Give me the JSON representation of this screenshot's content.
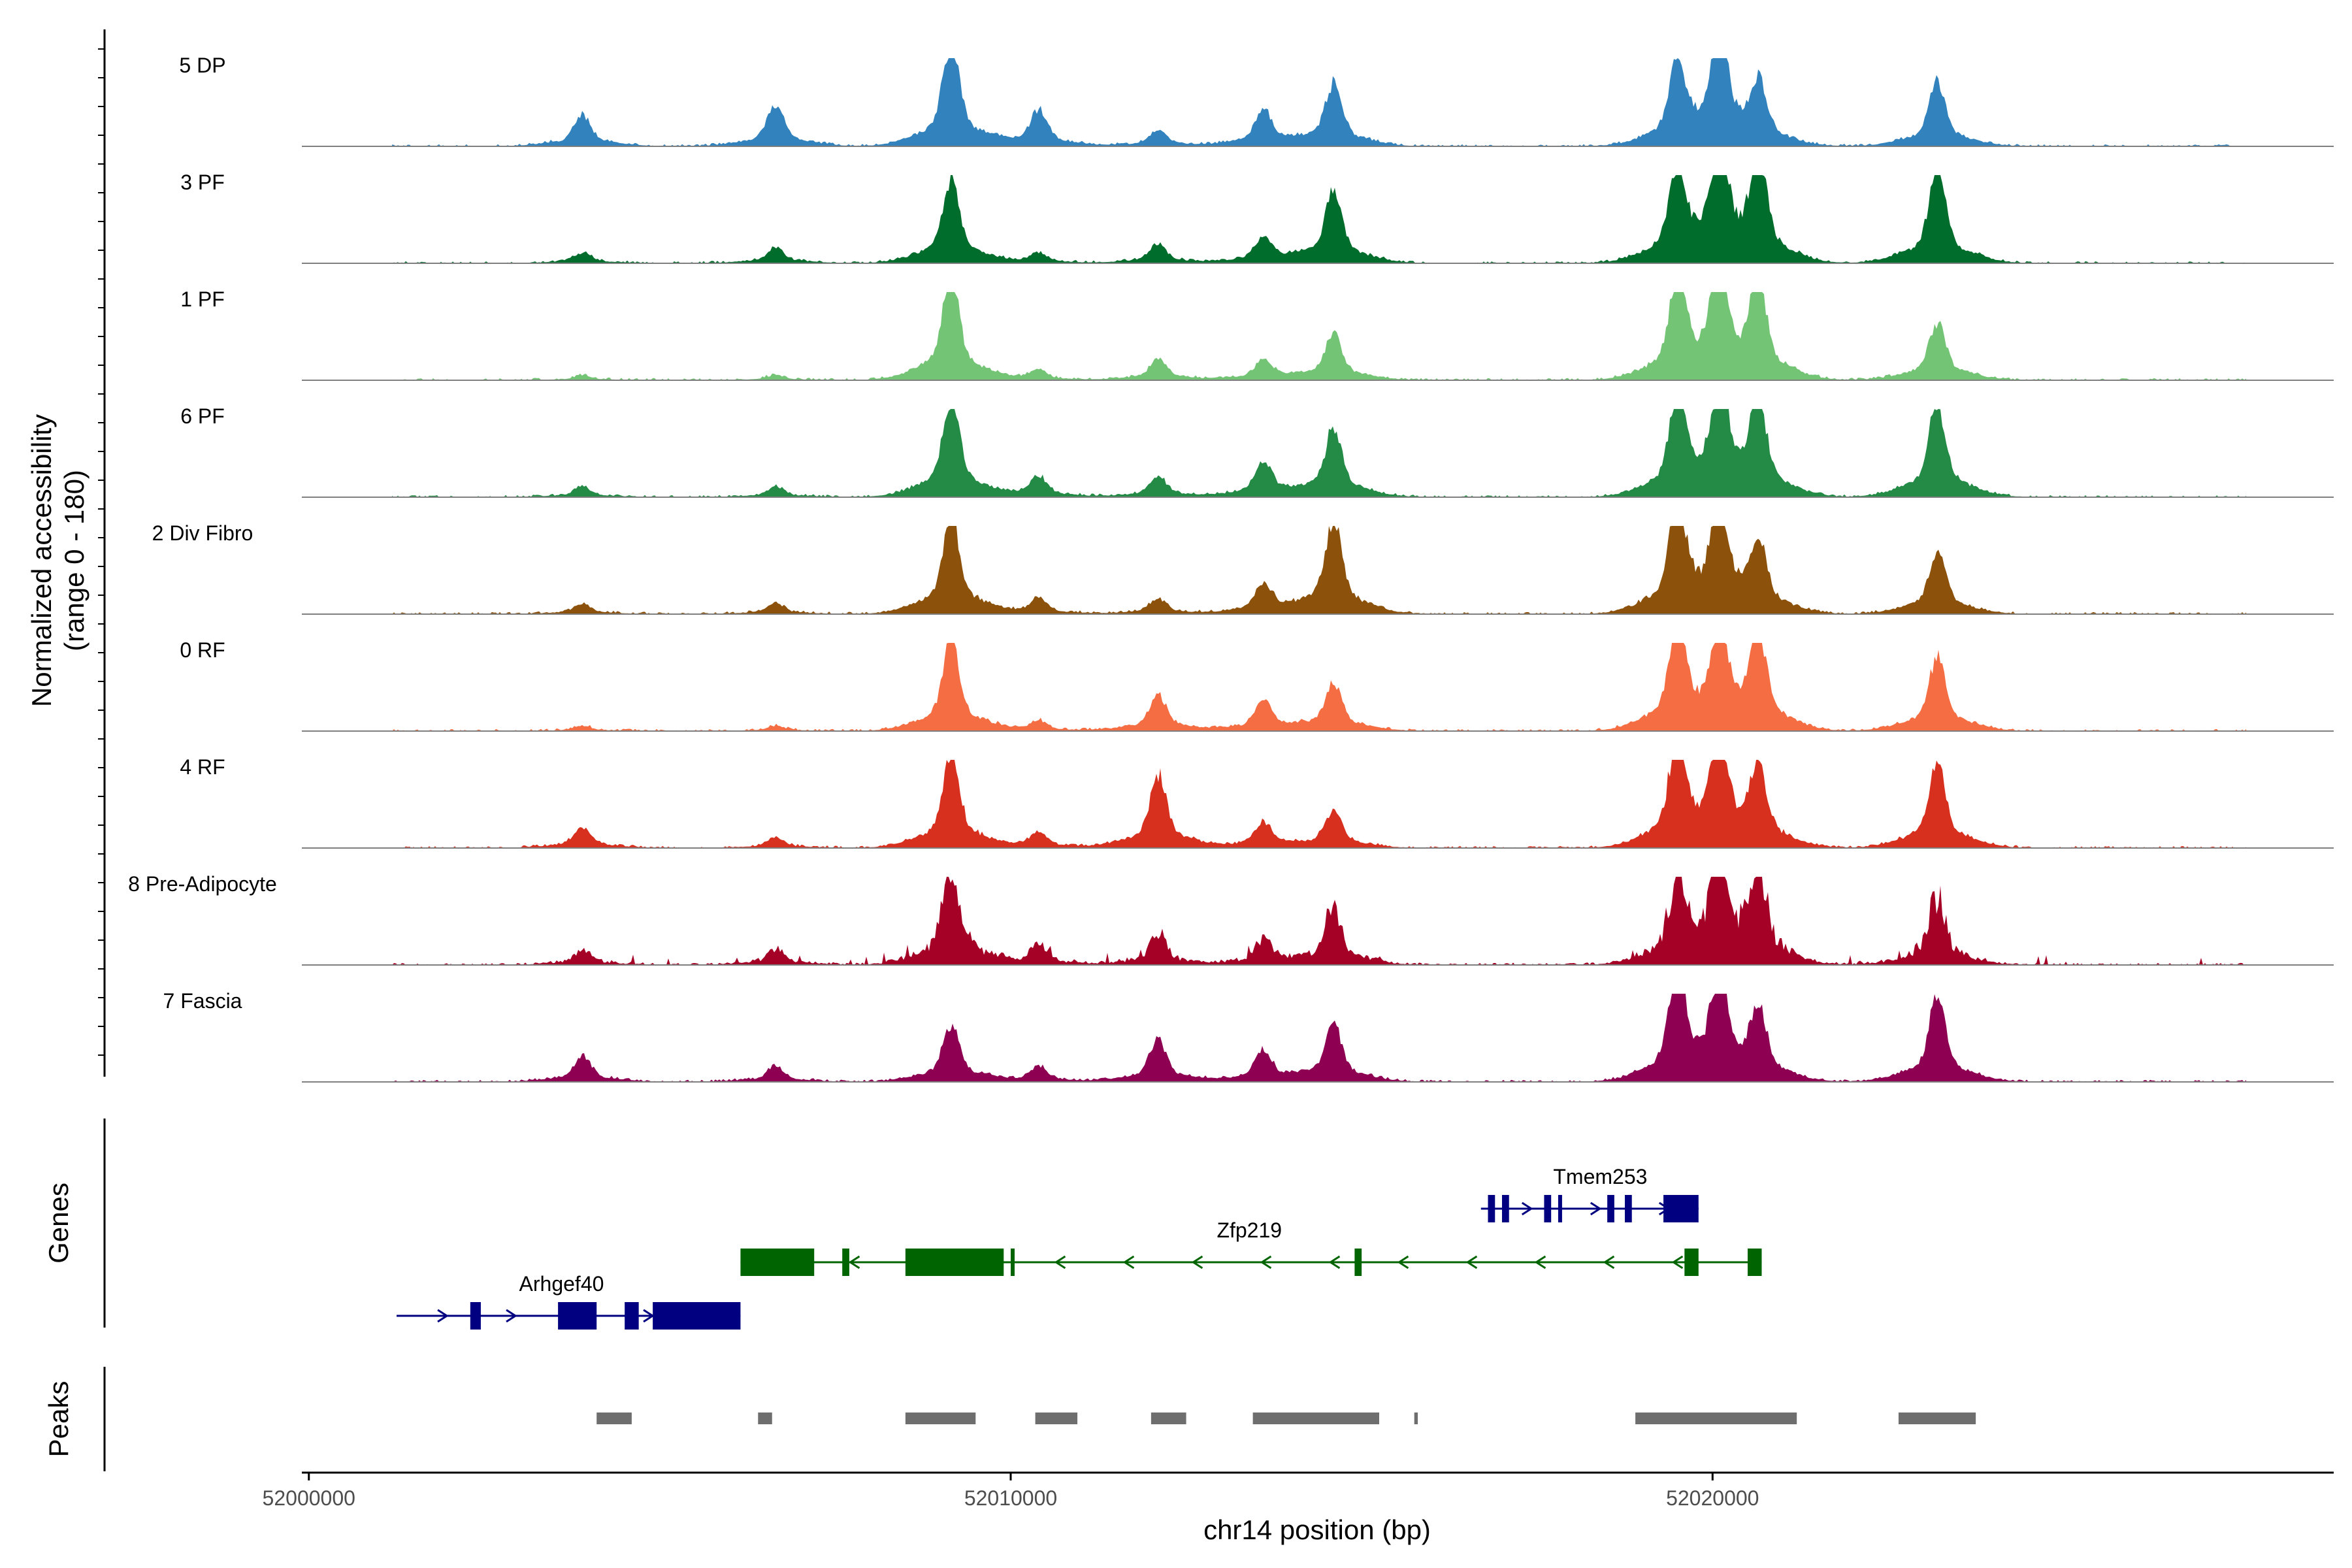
{
  "chart_data": {
    "type": "area",
    "title": "",
    "ylabel_line1": "Normalized accessibility",
    "ylabel_line2": "(range 0 - 180)",
    "yrange": [
      0,
      180
    ],
    "xlabel": "chr14 position (bp)",
    "xlim": [
      51999900,
      52028850
    ],
    "xticks": [
      52000000,
      52010000,
      52020000
    ],
    "xtick_labels": [
      "52000000",
      "52010000",
      "52020000"
    ],
    "peak_centers": [
      52003900,
      52006650,
      52009150,
      52010400,
      52012100,
      52013600,
      52014600,
      52019500,
      52020100,
      52020650,
      52023200
    ],
    "tracks": [
      {
        "name": "5 DP",
        "color": "#3182BD",
        "heights": [
          0.3,
          0.4,
          1.0,
          0.35,
          0.15,
          0.35,
          0.6,
          0.75,
          1.0,
          0.55,
          0.6
        ],
        "style": "smooth"
      },
      {
        "name": "3 PF",
        "color": "#006D2C",
        "heights": [
          0.1,
          0.15,
          0.8,
          0.1,
          0.18,
          0.25,
          0.7,
          0.9,
          1.0,
          0.95,
          0.9
        ],
        "style": "smooth"
      },
      {
        "name": "1 PF",
        "color": "#74C476",
        "heights": [
          0.05,
          0.05,
          1.0,
          0.1,
          0.2,
          0.2,
          0.45,
          0.9,
          1.0,
          0.9,
          0.55
        ],
        "style": "smooth"
      },
      {
        "name": "6 PF",
        "color": "#238B45",
        "heights": [
          0.1,
          0.1,
          0.95,
          0.2,
          0.2,
          0.35,
          0.65,
          0.9,
          1.0,
          0.85,
          0.9
        ],
        "style": "smooth"
      },
      {
        "name": "2 Div Fibro",
        "color": "#8C510A",
        "heights": [
          0.1,
          0.1,
          0.95,
          0.15,
          0.15,
          0.3,
          0.9,
          1.0,
          1.0,
          0.65,
          0.6
        ],
        "style": "smooth"
      },
      {
        "name": "0 RF",
        "color": "#F46D43",
        "heights": [
          0.05,
          0.05,
          0.85,
          0.1,
          0.35,
          0.3,
          0.45,
          1.0,
          0.85,
          0.9,
          0.7
        ],
        "style": "smooth"
      },
      {
        "name": "4 RF",
        "color": "#D7301F",
        "heights": [
          0.2,
          0.1,
          0.9,
          0.15,
          0.7,
          0.25,
          0.35,
          1.0,
          0.95,
          0.75,
          0.8
        ],
        "style": "smooth"
      },
      {
        "name": "8 Pre-Adipocyte",
        "color": "#A50026",
        "heights": [
          0.15,
          0.15,
          1.0,
          0.2,
          0.3,
          0.25,
          0.55,
          0.85,
          1.0,
          0.9,
          0.65
        ],
        "style": "spiky"
      },
      {
        "name": "7 Fascia",
        "color": "#8E0152",
        "heights": [
          0.25,
          0.15,
          0.55,
          0.15,
          0.4,
          0.3,
          0.55,
          1.0,
          0.95,
          0.65,
          0.8
        ],
        "style": "smooth"
      }
    ],
    "genes_panel_label": "Genes",
    "peaks_panel_label": "Peaks",
    "genes": [
      {
        "name": "Arhgef40",
        "strand": "+",
        "color": "#000080",
        "start": 52001250,
        "end": 52006150,
        "row": 3,
        "exons": [
          [
            52002300,
            52002450
          ],
          [
            52003550,
            52004100
          ],
          [
            52004500,
            52004700
          ],
          [
            52004900,
            52006150
          ]
        ]
      },
      {
        "name": "Zfp219",
        "strand": "-",
        "color": "#006400",
        "start": 52006150,
        "end": 52020700,
        "row": 2,
        "exons": [
          [
            52006150,
            52007200
          ],
          [
            52007600,
            52007700
          ],
          [
            52008500,
            52009900
          ],
          [
            52010000,
            52010050
          ],
          [
            52014900,
            52015000
          ],
          [
            52019600,
            52019800
          ],
          [
            52020500,
            52020700
          ]
        ]
      },
      {
        "name": "Tmem253",
        "strand": "+",
        "color": "#000080",
        "start": 52016700,
        "end": 52019800,
        "row": 1,
        "exons": [
          [
            52016800,
            52016900
          ],
          [
            52017000,
            52017100
          ],
          [
            52017600,
            52017700
          ],
          [
            52017800,
            52017850
          ],
          [
            52018500,
            52018600
          ],
          [
            52018750,
            52018850
          ],
          [
            52019300,
            52019800
          ]
        ]
      }
    ],
    "peaks": [
      [
        52004100,
        52004600
      ],
      [
        52006400,
        52006600
      ],
      [
        52008500,
        52009500
      ],
      [
        52010350,
        52010950
      ],
      [
        52012000,
        52012500
      ],
      [
        52013450,
        52015250
      ],
      [
        52015750,
        52015800
      ],
      [
        52018900,
        52021200
      ],
      [
        52022650,
        52023750
      ]
    ]
  }
}
